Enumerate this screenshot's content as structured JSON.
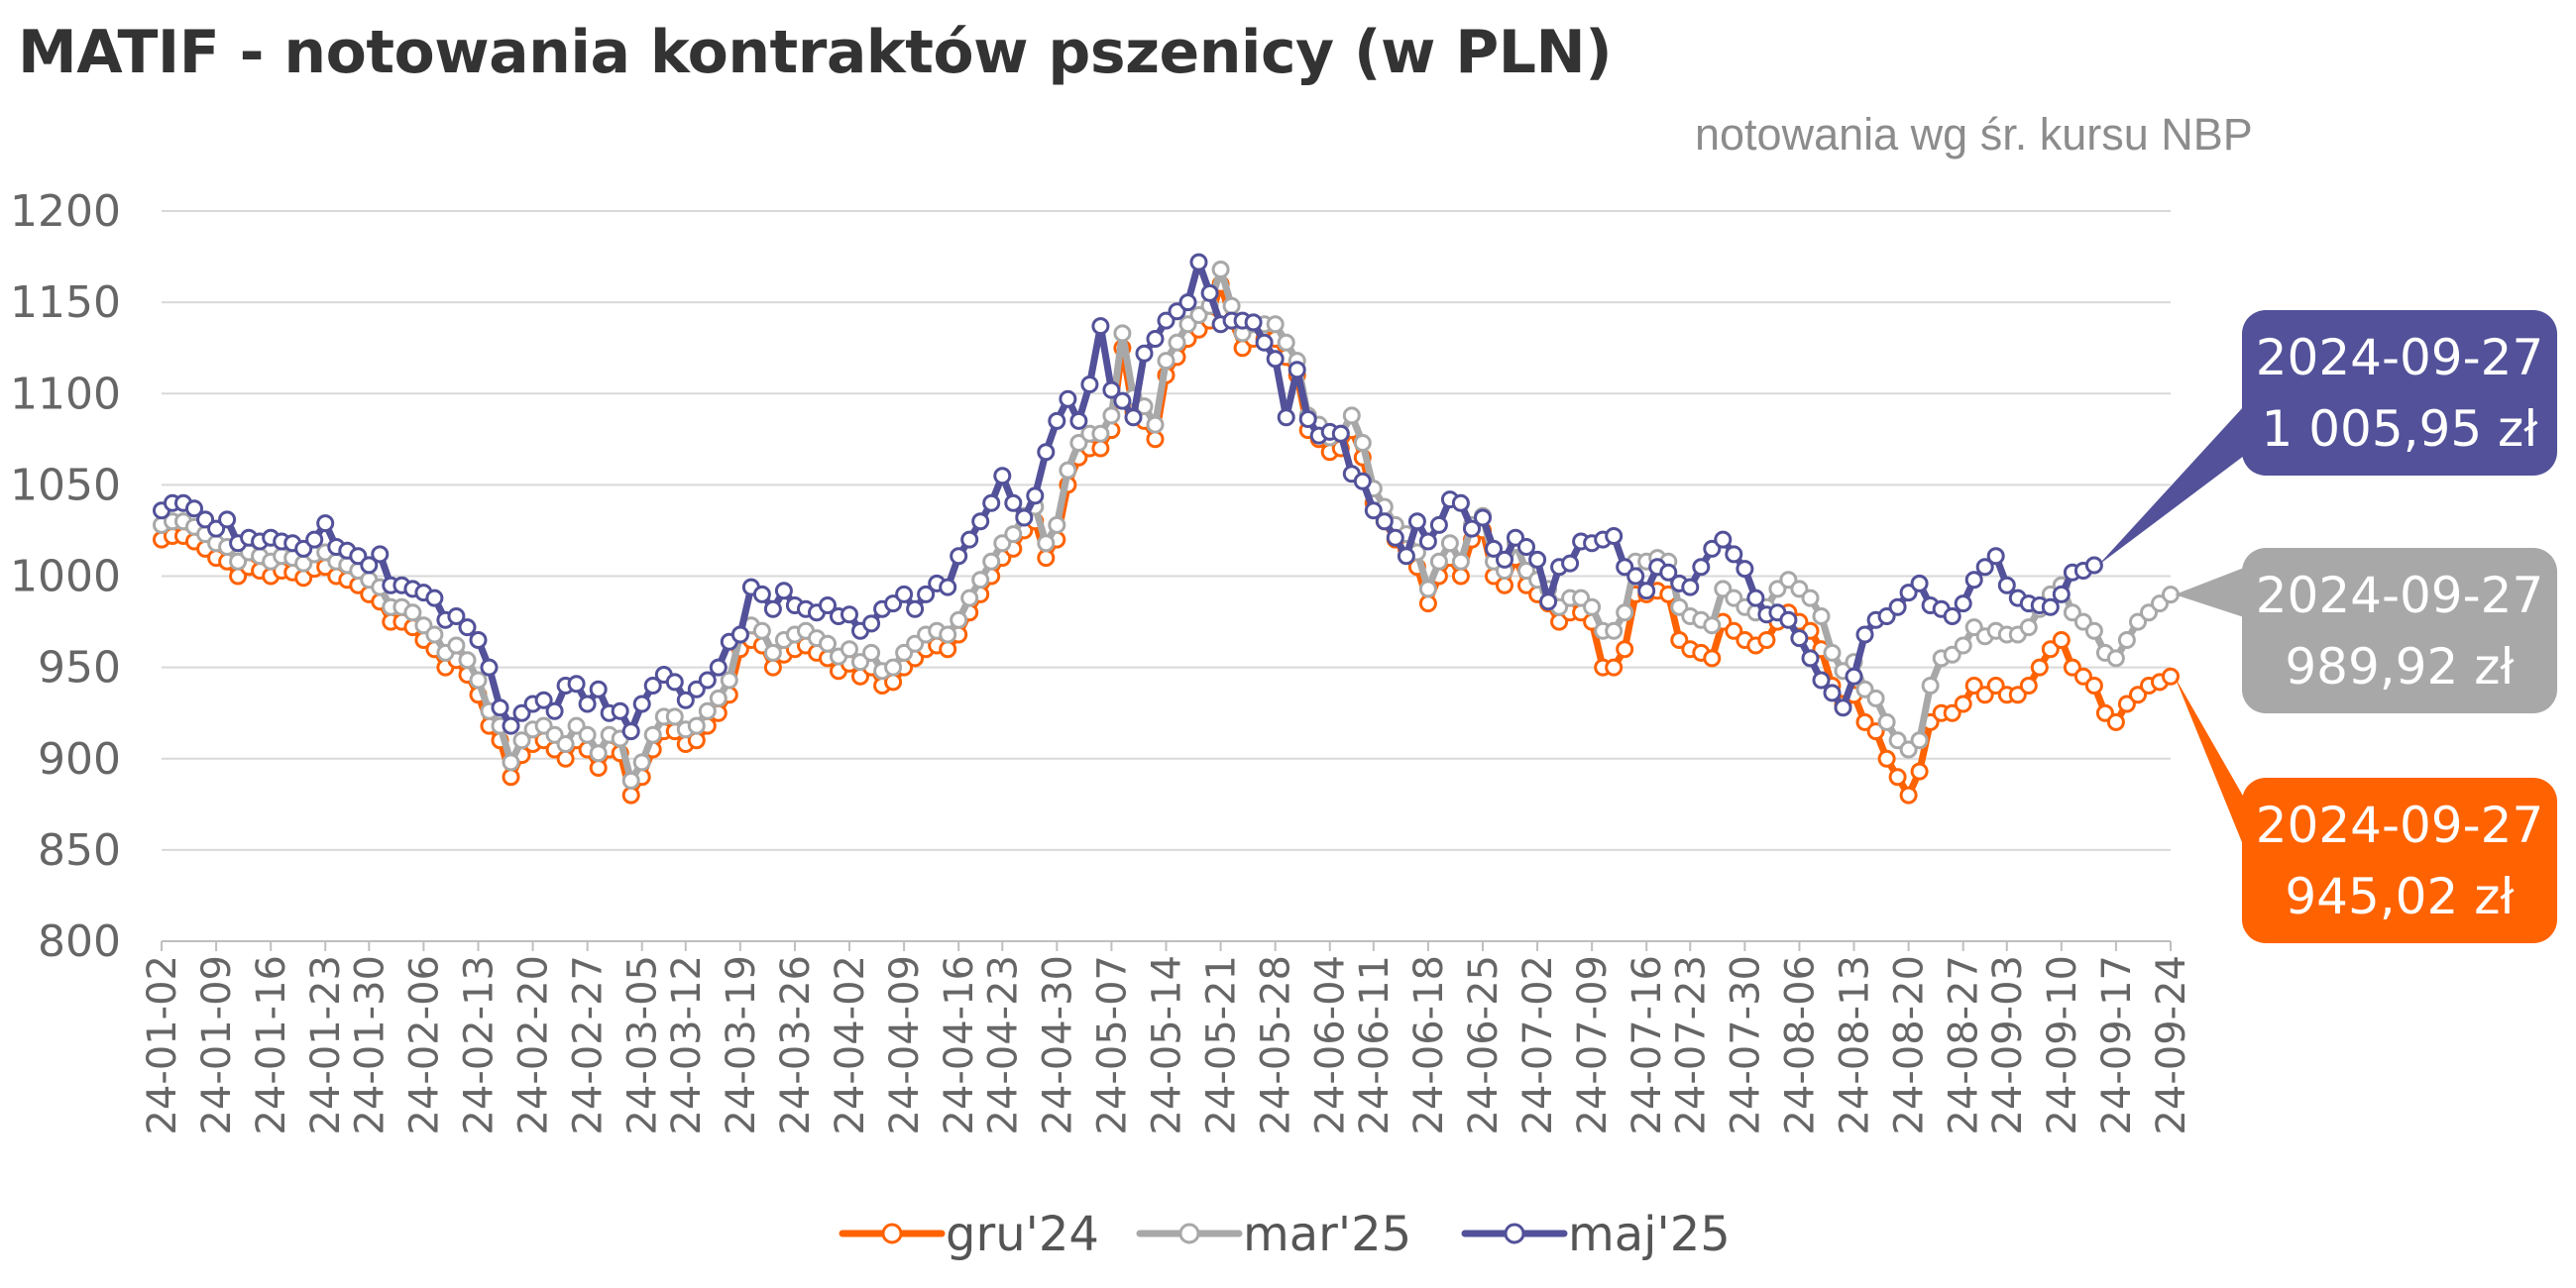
{
  "title": "MATIF - notowania kontraktów pszenicy (w PLN)",
  "subtitle": "notowania  wg  śr. kursu NBP",
  "chart_data": {
    "type": "line",
    "title": "MATIF - notowania kontraktów pszenicy (w PLN)",
    "subtitle": "notowania  wg  śr. kursu NBP",
    "xlabel": "",
    "ylabel": "",
    "ylim": [
      800,
      1200
    ],
    "yticks": [
      800,
      850,
      900,
      950,
      1000,
      1050,
      1100,
      1150,
      1200
    ],
    "grid": true,
    "legend_position": "bottom",
    "x_tick_labels": [
      "24-01-02",
      "24-01-09",
      "24-01-16",
      "24-01-23",
      "24-01-30",
      "24-02-06",
      "24-02-13",
      "24-02-20",
      "24-02-27",
      "24-03-05",
      "24-03-12",
      "24-03-19",
      "24-03-26",
      "24-04-02",
      "24-04-09",
      "24-04-16",
      "24-04-23",
      "24-04-30",
      "24-05-07",
      "24-05-14",
      "24-05-21",
      "24-05-28",
      "24-06-04",
      "24-06-11",
      "24-06-18",
      "24-06-25",
      "24-07-02",
      "24-07-09",
      "24-07-16",
      "24-07-23",
      "24-07-30",
      "24-08-06",
      "24-08-13",
      "24-08-20",
      "24-08-27",
      "24-09-03",
      "24-09-10",
      "24-09-17",
      "24-09-24"
    ],
    "series": [
      {
        "name": "gru'24",
        "color": "#ff6200",
        "values": [
          1020,
          1022,
          1022,
          1019,
          1015,
          1010,
          1008,
          1000,
          1005,
          1003,
          1000,
          1003,
          1002,
          999,
          1004,
          1005,
          1000,
          998,
          995,
          990,
          986,
          975,
          975,
          972,
          965,
          960,
          950,
          954,
          946,
          935,
          918,
          910,
          890,
          902,
          908,
          910,
          905,
          900,
          910,
          905,
          895,
          905,
          903,
          880,
          890,
          905,
          915,
          915,
          908,
          910,
          918,
          925,
          935,
          960,
          965,
          962,
          950,
          957,
          960,
          962,
          958,
          955,
          948,
          952,
          945,
          950,
          940,
          942,
          950,
          955,
          960,
          962,
          960,
          968,
          980,
          990,
          1000,
          1010,
          1015,
          1025,
          1030,
          1010,
          1020,
          1050,
          1065,
          1070,
          1070,
          1080,
          1125,
          1090,
          1085,
          1075,
          1110,
          1120,
          1130,
          1135,
          1140,
          1160,
          1140,
          1125,
          1130,
          1130,
          1130,
          1120,
          1110,
          1080,
          1075,
          1068,
          1070,
          1080,
          1065,
          1040,
          1030,
          1020,
          1015,
          1005,
          985,
          1000,
          1010,
          1000,
          1020,
          1025,
          1000,
          995,
          1010,
          995,
          990,
          985,
          975,
          980,
          980,
          975,
          950,
          950,
          960,
          990,
          990,
          992,
          990,
          965,
          960,
          958,
          955,
          975,
          970,
          965,
          962,
          965,
          975,
          980,
          975,
          970,
          960,
          940,
          930,
          935,
          920,
          915,
          900,
          890,
          880,
          893,
          920,
          925,
          925,
          930,
          940,
          935,
          940,
          935,
          935,
          940,
          950,
          960,
          965,
          950,
          945,
          940,
          925,
          920,
          930,
          935,
          940,
          942,
          945.02
        ]
      },
      {
        "name": "mar'25",
        "color": "#a8a8a8",
        "values": [
          1028,
          1030,
          1030,
          1027,
          1023,
          1018,
          1016,
          1008,
          1013,
          1011,
          1008,
          1011,
          1010,
          1007,
          1012,
          1013,
          1008,
          1006,
          1003,
          998,
          994,
          983,
          983,
          980,
          973,
          968,
          958,
          962,
          954,
          943,
          926,
          918,
          898,
          910,
          916,
          918,
          913,
          908,
          918,
          913,
          903,
          913,
          911,
          888,
          898,
          913,
          923,
          923,
          916,
          918,
          926,
          933,
          943,
          968,
          973,
          970,
          958,
          965,
          968,
          970,
          966,
          963,
          956,
          960,
          953,
          958,
          948,
          950,
          958,
          963,
          968,
          970,
          968,
          976,
          988,
          998,
          1008,
          1018,
          1023,
          1033,
          1038,
          1018,
          1028,
          1058,
          1073,
          1078,
          1078,
          1088,
          1133,
          1098,
          1093,
          1083,
          1118,
          1128,
          1138,
          1143,
          1148,
          1168,
          1148,
          1133,
          1138,
          1138,
          1138,
          1128,
          1118,
          1088,
          1083,
          1076,
          1078,
          1088,
          1073,
          1048,
          1038,
          1028,
          1023,
          1013,
          993,
          1008,
          1018,
          1008,
          1028,
          1033,
          1008,
          1003,
          1018,
          1003,
          998,
          993,
          983,
          988,
          988,
          983,
          970,
          970,
          980,
          1008,
          1008,
          1010,
          1008,
          983,
          978,
          976,
          973,
          993,
          988,
          983,
          980,
          983,
          993,
          998,
          993,
          988,
          978,
          958,
          948,
          953,
          938,
          933,
          920,
          910,
          905,
          910,
          940,
          955,
          957,
          962,
          972,
          967,
          970,
          968,
          968,
          972,
          982,
          990,
          995,
          980,
          975,
          970,
          958,
          955,
          965,
          975,
          980,
          985,
          989.92
        ]
      },
      {
        "name": "maj'25",
        "color": "#525199",
        "values": [
          1036,
          1040,
          1040,
          1037,
          1031,
          1026,
          1031,
          1018,
          1021,
          1019,
          1021,
          1019,
          1018,
          1015,
          1020,
          1029,
          1016,
          1014,
          1011,
          1006,
          1012,
          995,
          995,
          993,
          991,
          988,
          976,
          978,
          972,
          965,
          950,
          928,
          918,
          925,
          930,
          932,
          926,
          940,
          941,
          930,
          938,
          925,
          926,
          915,
          930,
          940,
          946,
          942,
          932,
          938,
          943,
          950,
          964,
          968,
          994,
          990,
          982,
          992,
          984,
          982,
          980,
          984,
          978,
          979,
          970,
          974,
          982,
          985,
          990,
          982,
          990,
          996,
          994,
          1011,
          1020,
          1030,
          1040,
          1055,
          1040,
          1032,
          1044,
          1068,
          1085,
          1097,
          1085,
          1105,
          1137,
          1102,
          1096,
          1087,
          1122,
          1130,
          1140,
          1145,
          1150,
          1172,
          1155,
          1138,
          1140,
          1140,
          1139,
          1128,
          1119,
          1087,
          1113,
          1086,
          1077,
          1079,
          1078,
          1056,
          1052,
          1036,
          1030,
          1021,
          1011,
          1030,
          1019,
          1028,
          1042,
          1040,
          1026,
          1032,
          1015,
          1009,
          1021,
          1016,
          1009,
          986,
          1005,
          1007,
          1019,
          1018,
          1020,
          1022,
          1005,
          1000,
          992,
          1005,
          1002,
          996,
          994,
          1005,
          1015,
          1020,
          1012,
          1004,
          988,
          979,
          980,
          976,
          966,
          955,
          943,
          936,
          928,
          945,
          968,
          976,
          978,
          983,
          991,
          996,
          984,
          982,
          978,
          985,
          998,
          1005,
          1011,
          995,
          988,
          985,
          984,
          983,
          990,
          1002,
          1003,
          1005.95
        ]
      }
    ],
    "legend": [
      "gru'24",
      "mar'25",
      "maj'25"
    ],
    "annotations": [
      {
        "series": "maj'25",
        "date": "2024-09-27",
        "value": "1 005,95 zł",
        "color": "#525199"
      },
      {
        "series": "mar'25",
        "date": "2024-09-27",
        "value": "989,92 zł",
        "color": "#a8a8a8"
      },
      {
        "series": "gru'24",
        "date": "2024-09-27",
        "value": "945,02 zł",
        "color": "#ff6200"
      }
    ]
  }
}
